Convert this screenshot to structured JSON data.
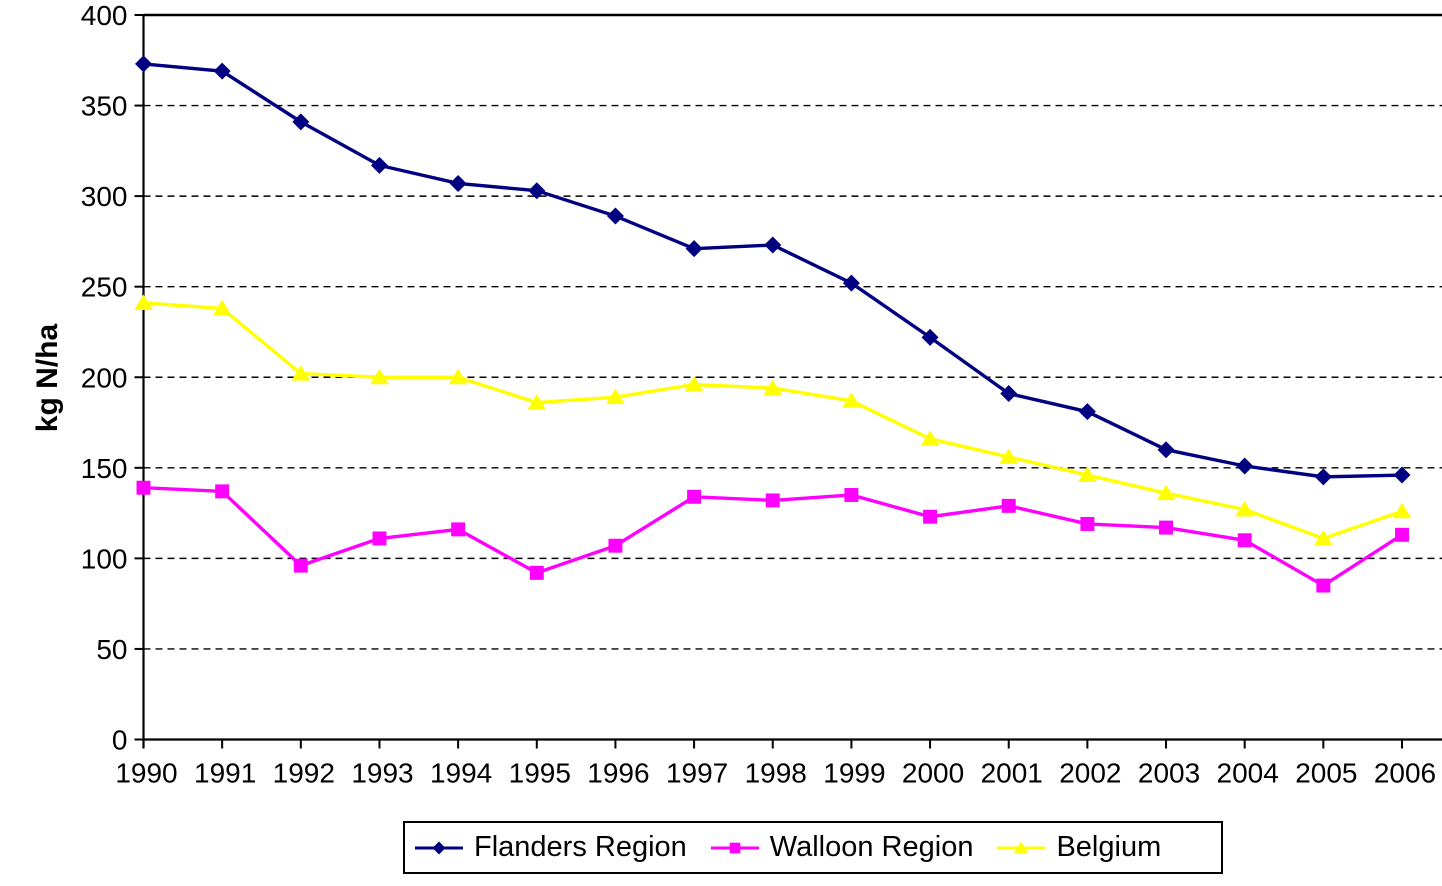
{
  "chart_data": {
    "type": "line",
    "title": "",
    "xlabel": "",
    "ylabel": "kg N/ha",
    "ylim": [
      0,
      400
    ],
    "ytick_step": 50,
    "grid": "horizontal dashed gridlines, solid top border",
    "legend_position": "bottom",
    "background_color": "#FFFFFF",
    "axis_color": "#000000",
    "categories": [
      "1990",
      "1991",
      "1992",
      "1993",
      "1994",
      "1995",
      "1996",
      "1997",
      "1998",
      "1999",
      "2000",
      "2001",
      "2002",
      "2003",
      "2004",
      "2005",
      "2006"
    ],
    "series": [
      {
        "name": "Flanders Region",
        "color": "#000080",
        "marker": "diamond",
        "values": [
          373,
          369,
          341,
          317,
          307,
          303,
          289,
          271,
          273,
          252,
          222,
          191,
          181,
          160,
          151,
          145,
          146
        ]
      },
      {
        "name": "Walloon Region",
        "color": "#FF00FF",
        "marker": "square",
        "values": [
          139,
          137,
          96,
          111,
          116,
          92,
          107,
          134,
          132,
          135,
          123,
          129,
          119,
          117,
          110,
          85,
          113
        ]
      },
      {
        "name": "Belgium",
        "color": "#FFFF00",
        "marker": "triangle",
        "values": [
          241,
          238,
          202,
          200,
          200,
          186,
          189,
          196,
          194,
          187,
          166,
          156,
          146,
          136,
          127,
          111,
          126
        ]
      }
    ]
  }
}
